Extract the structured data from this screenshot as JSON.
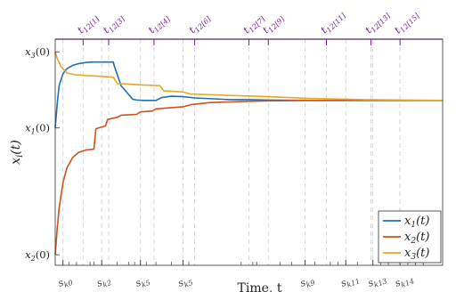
{
  "chart_data": {
    "type": "line",
    "xlabel": "Time, t",
    "ylabel": "x_i(t)",
    "ytick_labels": [
      "x3(0)",
      "x1(0)",
      "x2(0)"
    ],
    "ytick_values": [
      2.8,
      1.0,
      -2.0
    ],
    "xlim": [
      0,
      10
    ],
    "ylim": [
      -2.25,
      3.1
    ],
    "legend_position": "bottom-right",
    "colors": {
      "x1": "#1f6fb4",
      "x2": "#d0511e",
      "x3": "#e3a92a",
      "top_events": "#7a1fa2",
      "bottom_events": "#444444"
    },
    "top_events": [
      {
        "label": "t12[1]",
        "x": 0.72
      },
      {
        "label": "t12[3]",
        "x": 1.38
      },
      {
        "label": "t12[4]",
        "x": 2.55
      },
      {
        "label": "t12[6]",
        "x": 3.6
      },
      {
        "label": "t12[7]",
        "x": 5.0
      },
      {
        "label": "t12[9]",
        "x": 5.5
      },
      {
        "label": "t12[11]",
        "x": 7.0
      },
      {
        "label": "t12[13]",
        "x": 8.15
      },
      {
        "label": "t12[15]",
        "x": 8.9
      }
    ],
    "bottom_events": [
      {
        "label": "s_k0",
        "x": 0.2
      },
      {
        "label": "s_k2",
        "x": 1.2
      },
      {
        "label": "s_k5",
        "x": 2.2
      },
      {
        "label": "s_k5",
        "x": 3.3
      },
      {
        "label": "s_k9",
        "x": 6.45
      },
      {
        "label": "s_k11",
        "x": 7.5
      },
      {
        "label": "s_k13",
        "x": 8.2
      },
      {
        "label": "s_k14",
        "x": 8.9
      }
    ],
    "series": [
      {
        "name": "x1(t)",
        "x": [
          0,
          0.05,
          0.1,
          0.2,
          0.3,
          0.45,
          0.6,
          0.8,
          1.0,
          1.5,
          1.52,
          1.7,
          2.0,
          2.1,
          2.3,
          2.6,
          2.75,
          3.0,
          3.3,
          3.6,
          4.5,
          5.0,
          5.5,
          6.5,
          8.0,
          10.0
        ],
        "y": [
          1.0,
          1.55,
          2.0,
          2.28,
          2.4,
          2.48,
          2.52,
          2.55,
          2.56,
          2.56,
          2.48,
          2.0,
          1.68,
          1.66,
          1.65,
          1.65,
          1.72,
          1.75,
          1.74,
          1.71,
          1.67,
          1.67,
          1.66,
          1.65,
          1.65,
          1.65
        ]
      },
      {
        "name": "x2(t)",
        "x": [
          0,
          0.05,
          0.1,
          0.2,
          0.3,
          0.45,
          0.6,
          0.8,
          1.0,
          1.05,
          1.3,
          1.35,
          1.6,
          1.7,
          2.1,
          2.2,
          2.5,
          2.6,
          3.3,
          3.5,
          4.0,
          5.0,
          5.5,
          6.5,
          8.0,
          10.0
        ],
        "y": [
          -2.0,
          -1.4,
          -0.9,
          -0.3,
          0.05,
          0.3,
          0.42,
          0.48,
          0.5,
          0.98,
          1.05,
          1.2,
          1.25,
          1.3,
          1.32,
          1.38,
          1.4,
          1.45,
          1.5,
          1.55,
          1.6,
          1.63,
          1.64,
          1.65,
          1.65,
          1.65
        ]
      },
      {
        "name": "x3(t)",
        "x": [
          0,
          0.05,
          0.15,
          0.3,
          0.5,
          0.8,
          1.2,
          1.5,
          1.6,
          2.2,
          2.7,
          2.8,
          3.3,
          3.5,
          4.5,
          5.5,
          6.5,
          8.0,
          10.0
        ],
        "y": [
          2.8,
          2.65,
          2.45,
          2.3,
          2.26,
          2.24,
          2.22,
          2.2,
          2.05,
          2.02,
          2.0,
          1.88,
          1.85,
          1.8,
          1.77,
          1.74,
          1.7,
          1.67,
          1.65
        ]
      }
    ]
  }
}
